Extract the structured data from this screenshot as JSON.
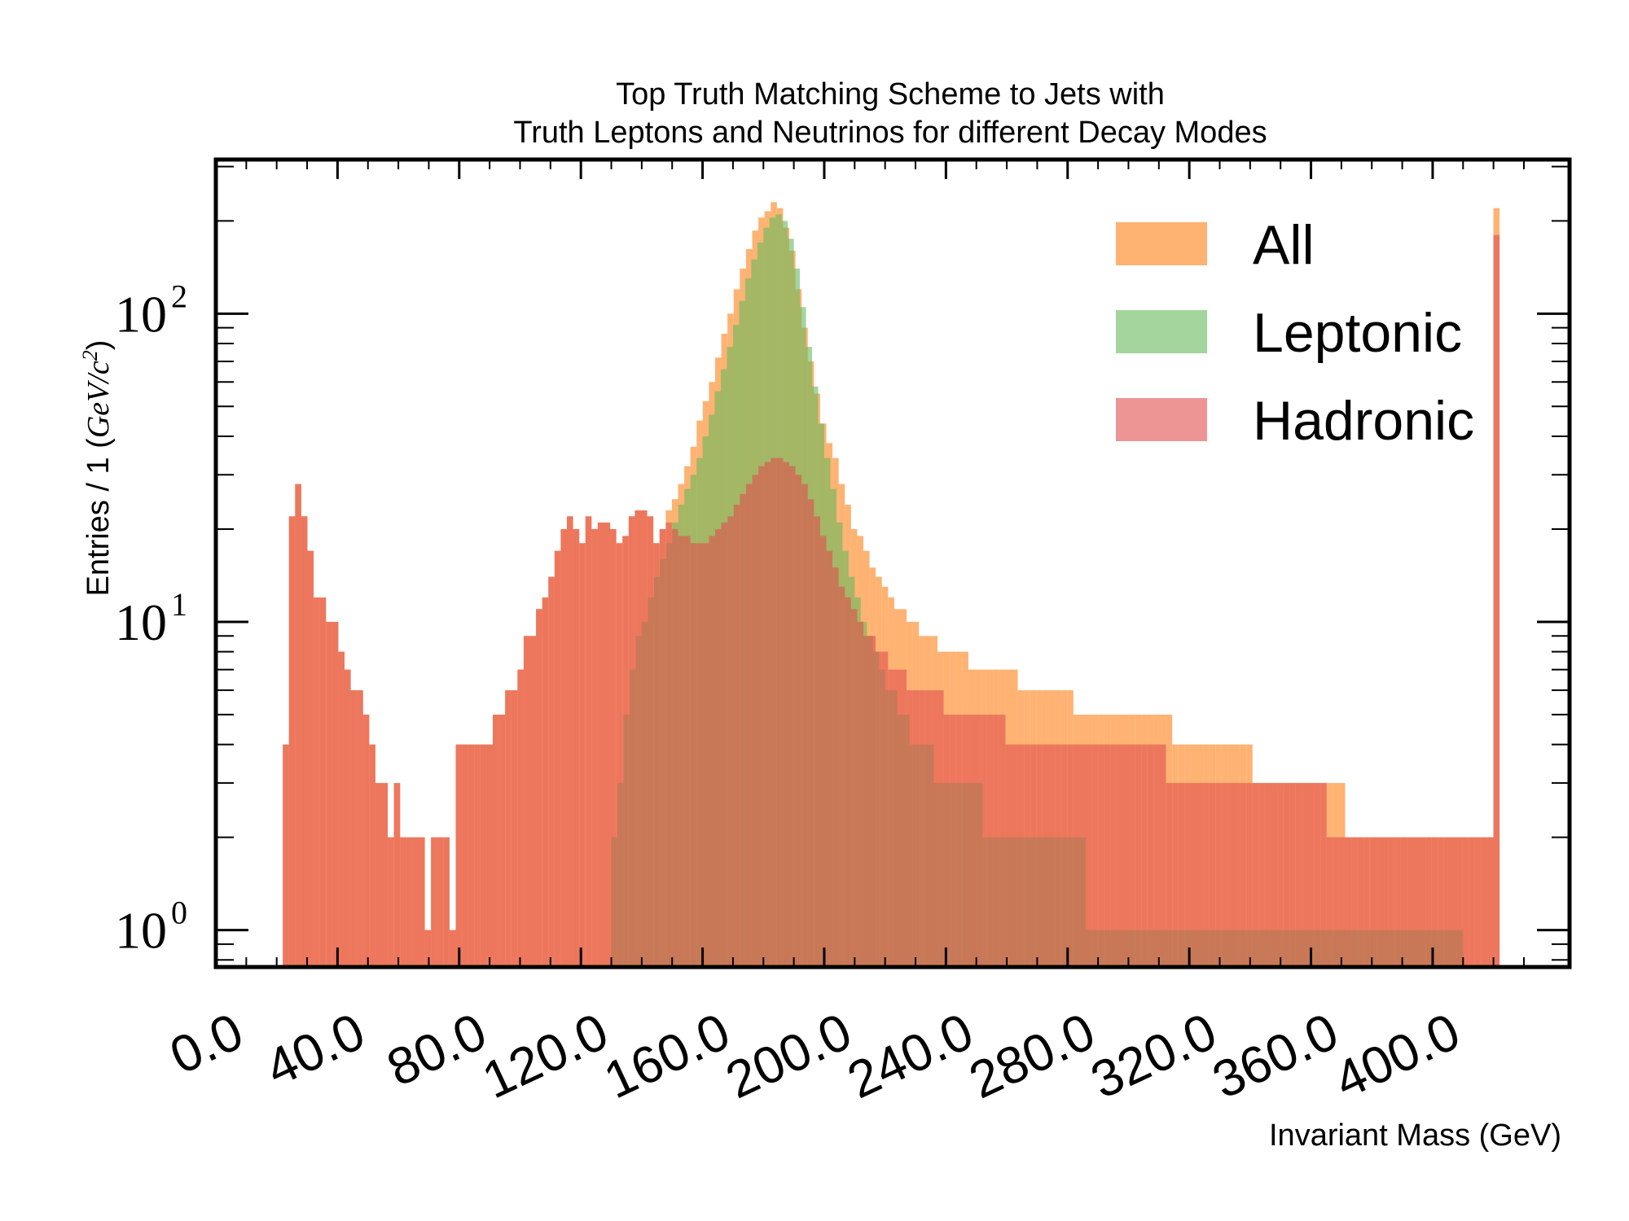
{
  "chart_data": {
    "type": "bar",
    "title_lines": [
      "Top Truth Matching Scheme to Jets with",
      "Truth Leptons and Neutrinos for different Decay Modes"
    ],
    "xlabel": "Invariant Mass (GeV)",
    "ylabel_prefix": "Entries / 1 (",
    "ylabel_math": "GeV/c",
    "ylabel_sup": "2",
    "ylabel_suffix": ")",
    "xlim": [
      0,
      445
    ],
    "ylim_log10": [
      -0.12,
      2.5
    ],
    "log_y": true,
    "x_ticks": [
      0,
      40,
      80,
      120,
      160,
      200,
      240,
      280,
      320,
      360,
      400
    ],
    "x_tick_labels": [
      "0.0",
      "40.0",
      "80.0",
      "120.0",
      "160.0",
      "200.0",
      "240.0",
      "280.0",
      "320.0",
      "360.0",
      "400.0"
    ],
    "y_ticks": [
      {
        "value": 1,
        "base": "10",
        "exp": "0"
      },
      {
        "value": 10,
        "base": "10",
        "exp": "1"
      },
      {
        "value": 100,
        "base": "10",
        "exp": "2"
      }
    ],
    "legend_position": "top-right",
    "series": [
      {
        "name": "All",
        "color": "#fd9944",
        "x_range": [
          22,
          422
        ],
        "values": [
          4,
          22,
          28,
          22,
          17,
          12,
          12,
          10,
          10,
          8,
          7,
          6,
          6,
          5,
          4,
          3,
          3,
          2,
          3,
          2,
          2,
          2,
          2,
          1,
          2,
          2,
          2,
          1,
          4,
          4,
          4,
          4,
          4,
          4,
          5,
          5,
          6,
          6,
          7,
          9,
          9,
          11,
          12,
          14,
          17,
          20,
          22,
          20,
          18,
          22,
          20,
          21,
          21,
          20,
          18,
          19,
          22,
          23,
          23,
          22,
          18,
          20,
          23,
          25,
          28,
          32,
          37,
          45,
          52,
          60,
          72,
          86,
          100,
          120,
          140,
          162,
          186,
          205,
          215,
          230,
          220,
          190,
          160,
          120,
          90,
          70,
          55,
          44,
          38,
          34,
          28,
          24,
          20,
          19,
          17,
          15,
          14,
          13,
          12,
          11,
          11,
          10,
          10,
          9,
          9,
          9,
          8,
          8,
          8,
          8,
          8,
          7,
          7,
          7,
          7,
          7,
          7,
          7,
          7,
          6,
          6,
          6,
          6,
          6,
          6,
          6,
          6,
          6,
          5,
          5,
          5,
          5,
          5,
          5,
          5,
          5,
          5,
          5,
          5,
          5,
          5,
          5,
          5,
          5,
          4,
          4,
          4,
          4,
          4,
          4,
          4,
          4,
          4,
          4,
          4,
          4,
          4,
          3,
          3,
          3,
          3,
          3,
          3,
          3,
          3,
          3,
          3,
          3,
          3,
          3,
          3,
          3,
          2,
          2,
          2,
          2,
          2,
          2,
          2,
          2,
          2,
          2,
          2,
          2,
          2,
          2,
          2,
          2,
          2,
          2,
          2,
          2,
          2,
          2,
          2,
          2,
          220
        ]
      },
      {
        "name": "Leptonic",
        "color": "#65b95c",
        "x_range": [
          130,
          410
        ],
        "values": [
          2,
          3,
          5,
          7,
          9,
          10,
          12,
          14,
          16,
          18,
          21,
          24,
          27,
          30,
          34,
          40,
          47,
          56,
          66,
          78,
          92,
          110,
          130,
          150,
          170,
          190,
          205,
          210,
          200,
          175,
          140,
          105,
          78,
          58,
          44,
          34,
          27,
          21,
          17,
          14,
          12,
          10,
          9,
          8,
          7,
          6,
          6,
          5,
          5,
          4,
          4,
          4,
          4,
          3,
          3,
          3,
          3,
          3,
          3,
          3,
          3,
          2,
          2,
          2,
          2,
          2,
          2,
          2,
          2,
          2,
          2,
          2,
          2,
          2,
          2,
          2,
          2,
          2,
          1,
          1,
          1,
          1,
          1,
          1,
          1,
          1,
          1,
          1,
          1,
          1,
          1,
          1,
          1,
          1,
          1,
          1,
          1,
          1,
          1,
          1,
          1,
          1,
          1,
          1,
          1,
          1,
          1,
          1,
          1,
          1,
          1,
          1,
          1,
          1,
          1,
          1,
          1,
          1,
          1,
          1,
          1,
          1,
          1,
          1,
          1,
          1,
          1,
          1,
          1,
          1,
          1,
          1,
          1,
          1,
          1,
          1,
          1,
          1,
          1,
          1
        ]
      },
      {
        "name": "Hadronic",
        "color": "#e14f4f",
        "x_range": [
          22,
          422
        ],
        "values": [
          4,
          22,
          28,
          22,
          17,
          12,
          12,
          10,
          10,
          8,
          7,
          6,
          6,
          5,
          4,
          3,
          3,
          2,
          3,
          2,
          2,
          2,
          2,
          1,
          2,
          2,
          2,
          1,
          4,
          4,
          4,
          4,
          4,
          4,
          5,
          5,
          6,
          6,
          7,
          9,
          9,
          11,
          12,
          14,
          17,
          20,
          22,
          20,
          18,
          22,
          20,
          21,
          21,
          20,
          18,
          19,
          22,
          23,
          23,
          22,
          18,
          20,
          21,
          20,
          19,
          19,
          18,
          18,
          18,
          19,
          20,
          21,
          22,
          24,
          26,
          28,
          30,
          32,
          33,
          34,
          34,
          33,
          32,
          30,
          28,
          25,
          22,
          19,
          17,
          15,
          13,
          12,
          11,
          10,
          9,
          9,
          8,
          8,
          7,
          7,
          7,
          6,
          6,
          6,
          6,
          6,
          6,
          5,
          5,
          5,
          5,
          5,
          5,
          5,
          5,
          5,
          5,
          4,
          4,
          4,
          4,
          4,
          4,
          4,
          4,
          4,
          4,
          4,
          4,
          4,
          4,
          4,
          4,
          4,
          4,
          4,
          4,
          4,
          4,
          4,
          4,
          4,
          4,
          3,
          3,
          3,
          3,
          3,
          3,
          3,
          3,
          3,
          3,
          3,
          3,
          3,
          3,
          3,
          3,
          3,
          3,
          3,
          3,
          3,
          3,
          3,
          3,
          3,
          3,
          2,
          2,
          2,
          2,
          2,
          2,
          2,
          2,
          2,
          2,
          2,
          2,
          2,
          2,
          2,
          2,
          2,
          2,
          2,
          2,
          2,
          2,
          2,
          2,
          2,
          2,
          2,
          180
        ]
      }
    ]
  }
}
